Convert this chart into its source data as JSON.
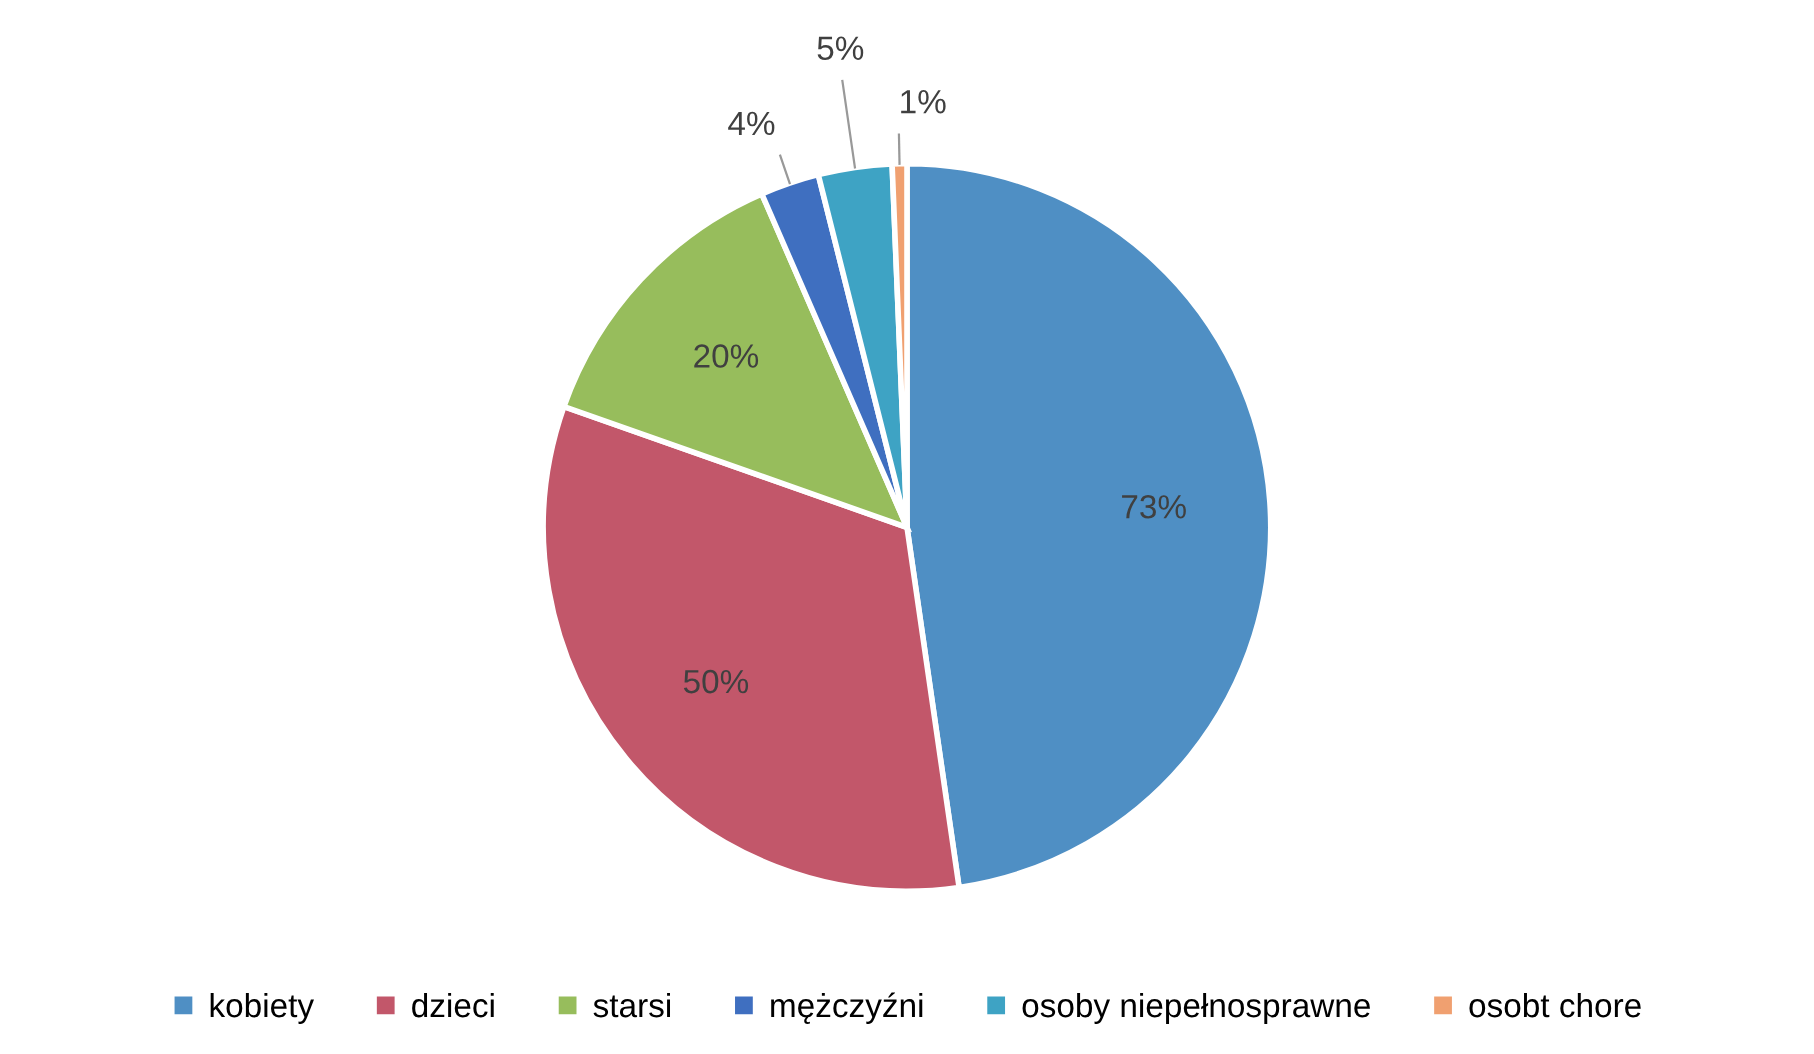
{
  "chart_data": {
    "type": "pie",
    "categories": [
      "kobiety",
      "dzieci",
      "starsi",
      "mężczyźni",
      "osoby niepełnosprawne",
      "osobt chore"
    ],
    "values": [
      73,
      50,
      20,
      4,
      5,
      1
    ],
    "value_labels": [
      "73%",
      "50%",
      "20%",
      "4%",
      "5%",
      "1%"
    ],
    "colors": [
      "#4f8fc4",
      "#c2576a",
      "#97bd5c",
      "#3f6fc0",
      "#3ea3c4",
      "#f0a070"
    ],
    "legend": "bottom"
  }
}
